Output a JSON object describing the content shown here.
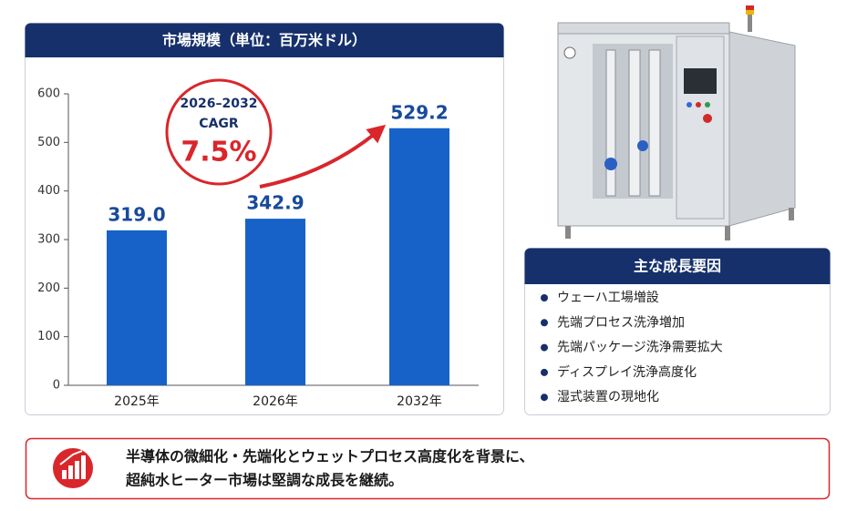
{
  "chart_data": {
    "type": "bar",
    "title": "市場規模（単位：百万米ドル）",
    "categories": [
      "2025年",
      "2026年",
      "2032年"
    ],
    "values": [
      319.0,
      342.9,
      529.2
    ],
    "value_labels": [
      "319.0",
      "342.9",
      "529.2"
    ],
    "color": "#1762c9",
    "ylim": [
      0,
      600
    ],
    "yticks": [
      0,
      100,
      200,
      300,
      400,
      500,
      600
    ],
    "annotation": {
      "period": "2026–2032",
      "label": "CAGR",
      "value": "7.5%"
    }
  },
  "drivers": {
    "title": "主な成長要因",
    "items": [
      "ウェーハ工場増設",
      "先端プロセス洗浄増加",
      "先端パッケージ洗浄需要拡大",
      "ディスプレイ洗浄高度化",
      "湿式装置の現地化"
    ]
  },
  "summary": {
    "lines": [
      "半導体の微細化・先端化とウェットプロセス高度化を背景に、",
      "超純水ヒーター市場は堅調な成長を継続。"
    ]
  }
}
